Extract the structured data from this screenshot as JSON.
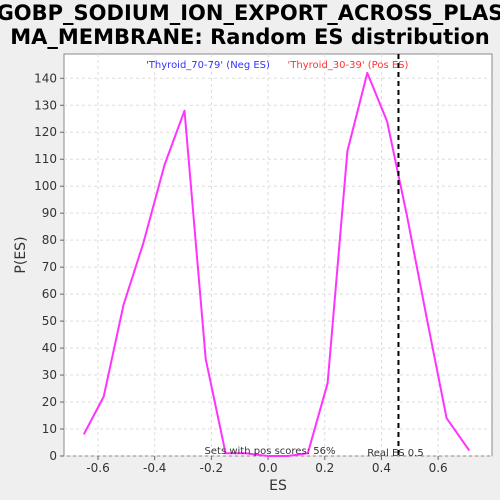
{
  "chart_data": {
    "type": "line",
    "title_line1": "GOBP_SODIUM_ION_EXPORT_ACROSS_PLAS",
    "title_line2": "MA_MEMBRANE: Random ES distribution",
    "xlabel": "ES",
    "ylabel": "P(ES)",
    "xlim": [
      -0.72,
      0.79
    ],
    "ylim": [
      0,
      149
    ],
    "xticks": [
      -0.6,
      -0.4,
      -0.2,
      0.0,
      0.2,
      0.4,
      0.6
    ],
    "xtick_labels": [
      "-0.6",
      "-0.4",
      "-0.2",
      "0.0",
      "0.2",
      "0.4",
      "0.6"
    ],
    "yticks": [
      0,
      10,
      20,
      30,
      40,
      50,
      60,
      70,
      80,
      90,
      100,
      110,
      120,
      130,
      140
    ],
    "ytick_labels": [
      "0",
      "10",
      "20",
      "30",
      "40",
      "50",
      "60",
      "70",
      "80",
      "90",
      "100",
      "110",
      "120",
      "130",
      "140"
    ],
    "grid": true,
    "series": [
      {
        "color": "#ff33ff",
        "x": [
          -0.65,
          -0.58,
          -0.51,
          -0.44,
          -0.365,
          -0.295,
          -0.22,
          -0.15,
          -0.08,
          0.0,
          0.07,
          0.14,
          0.21,
          0.28,
          0.35,
          0.42,
          0.49,
          0.56,
          0.63,
          0.71
        ],
        "y": [
          8,
          22,
          56,
          79,
          108,
          128,
          36,
          1,
          1,
          0,
          0,
          1,
          27,
          113,
          142,
          124,
          89,
          51,
          14,
          2
        ]
      }
    ],
    "legend": {
      "neg_label": "'Thyroid_70-79' (Neg ES)",
      "neg_color": "#3333ff",
      "pos_label": "'Thyroid_30-39' (Pos ES)",
      "pos_color": "#ff3333"
    },
    "real_es": {
      "value": 0.46,
      "label": "Real ES 0.5"
    },
    "annotation": "Sets with pos scores: 56%"
  }
}
